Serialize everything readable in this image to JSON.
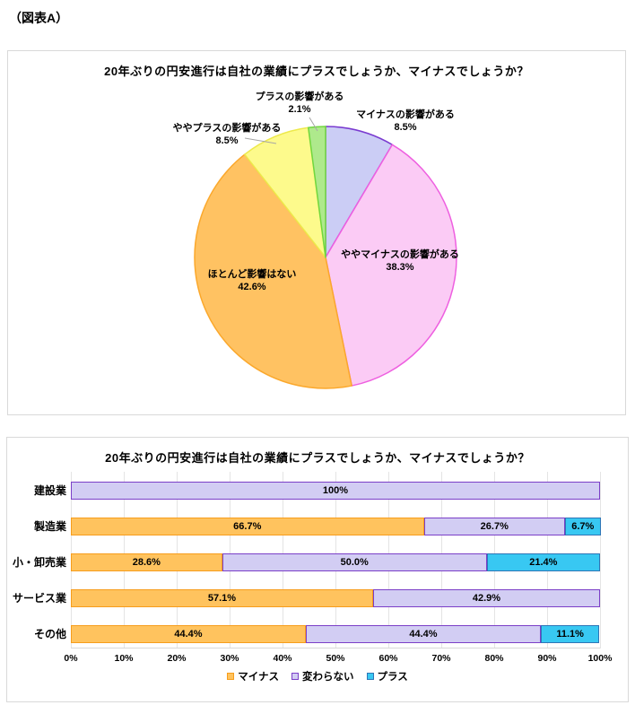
{
  "page": {
    "header": "（図表A）"
  },
  "chart_data": [
    {
      "type": "pie",
      "title": "20年ぶりの円安進行は自社の業績にプラスでしょうか、マイナスでしょうか？",
      "labels": [
        "マイナスの影響がある",
        "ややマイナスの影響がある",
        "ほとんど影響はない",
        "ややプラスの影響がある",
        "プラスの影響がある"
      ],
      "values": [
        8.5,
        38.3,
        42.6,
        8.5,
        2.1
      ],
      "value_labels": [
        "8.5%",
        "38.3%",
        "42.6%",
        "8.5%",
        "2.1%"
      ],
      "colors": [
        "#CBCDF5",
        "#FBCBF5",
        "#FFC262",
        "#FDFA8C",
        "#AEE98C"
      ],
      "border_colors": [
        "#7A3BD0",
        "#EE5FE0",
        "#FBA82C",
        "#EDE94B",
        "#70D73F"
      ],
      "start_angle_deg": 0,
      "direction": "clockwise",
      "legend_position": "none"
    },
    {
      "type": "bar",
      "subtype": "horizontal-stacked",
      "title": "20年ぶりの円安進行は自社の業績にプラスでしょうか、マイナスでしょうか？",
      "categories": [
        "建設業",
        "製造業",
        "小・卸売業",
        "サービス業",
        "その他"
      ],
      "series": [
        {
          "name": "マイナス",
          "values": [
            0,
            66.7,
            28.6,
            57.1,
            44.4
          ],
          "fill": "#FFC35E",
          "stroke": "#F79D1C"
        },
        {
          "name": "変わらない",
          "values": [
            100,
            26.7,
            50.0,
            42.9,
            44.4
          ],
          "fill": "#D2CDF3",
          "stroke": "#7B3FC8"
        },
        {
          "name": "プラス",
          "values": [
            0,
            6.7,
            21.4,
            0,
            11.1
          ],
          "fill": "#38C8F2",
          "stroke": "#2E75B6"
        }
      ],
      "rows": [
        {
          "category": "建設業",
          "segments": [
            {
              "s": 1,
              "pct": 100,
              "label": "100%"
            }
          ]
        },
        {
          "category": "製造業",
          "segments": [
            {
              "s": 0,
              "pct": 66.7,
              "label": "66.7%"
            },
            {
              "s": 1,
              "pct": 26.7,
              "label": "26.7%"
            },
            {
              "s": 2,
              "pct": 6.7,
              "label": "6.7%"
            }
          ]
        },
        {
          "category": "小・卸売業",
          "segments": [
            {
              "s": 0,
              "pct": 28.6,
              "label": "28.6%"
            },
            {
              "s": 1,
              "pct": 50.0,
              "label": "50.0%"
            },
            {
              "s": 2,
              "pct": 21.4,
              "label": "21.4%"
            }
          ]
        },
        {
          "category": "サービス業",
          "segments": [
            {
              "s": 0,
              "pct": 57.1,
              "label": "57.1%"
            },
            {
              "s": 1,
              "pct": 42.9,
              "label": "42.9%"
            }
          ]
        },
        {
          "category": "その他",
          "segments": [
            {
              "s": 0,
              "pct": 44.4,
              "label": "44.4%"
            },
            {
              "s": 1,
              "pct": 44.4,
              "label": "44.4%"
            },
            {
              "s": 2,
              "pct": 11.1,
              "label": "11.1%"
            }
          ]
        }
      ],
      "xlim": [
        0,
        100
      ],
      "x_ticks": [
        "0%",
        "10%",
        "20%",
        "30%",
        "40%",
        "50%",
        "60%",
        "70%",
        "80%",
        "90%",
        "100%"
      ],
      "grid": "vertical",
      "legend_position": "bottom",
      "legend": [
        "マイナス",
        "変わらない",
        "プラス"
      ]
    }
  ]
}
